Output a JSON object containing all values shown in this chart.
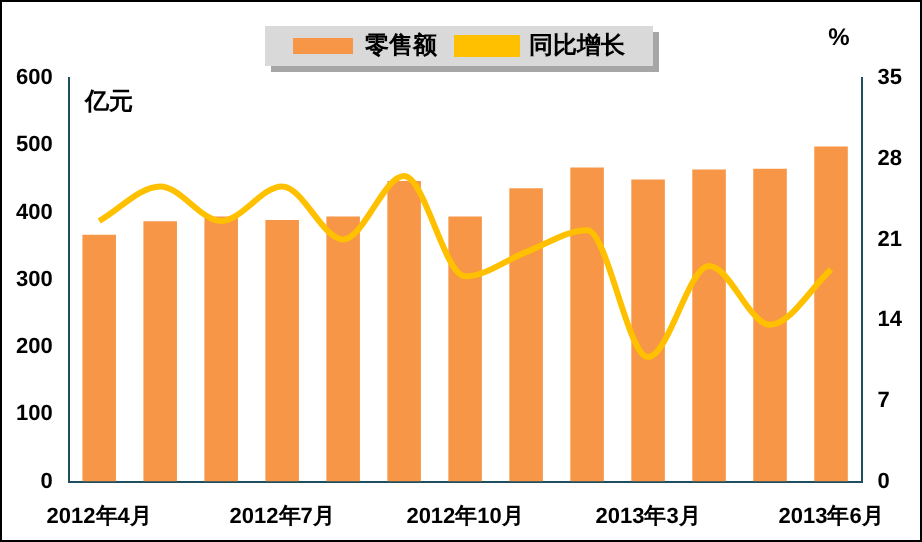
{
  "chart_data": {
    "type": "bar",
    "categories": [
      "2012年4月",
      null,
      null,
      "2012年7月",
      null,
      null,
      "2012年10月",
      null,
      null,
      "2013年3月",
      null,
      null,
      "2013年6月"
    ],
    "series": [
      {
        "name": "零售额",
        "color": "#f79646",
        "values": [
          367,
          387,
          394,
          389,
          394,
          447,
          394,
          436,
          467,
          449,
          464,
          465,
          498
        ]
      },
      {
        "name": "同比增长",
        "type": "line",
        "axis": "y2",
        "color": "#ffc000",
        "values": [
          22.6,
          25.6,
          22.6,
          25.6,
          21.0,
          26.5,
          17.8,
          19.9,
          21.8,
          10.8,
          18.7,
          13.6,
          18.4
        ]
      }
    ],
    "ylabel": "亿元",
    "y2label": "%",
    "ylim": [
      0,
      600
    ],
    "yticks": [
      0,
      100,
      200,
      300,
      400,
      500,
      600
    ],
    "y2lim": [
      0,
      35
    ],
    "y2ticks": [
      0,
      7,
      14,
      21,
      28,
      35
    ],
    "grid": false,
    "legend": "top",
    "marker": "none",
    "line_style": "solid"
  }
}
